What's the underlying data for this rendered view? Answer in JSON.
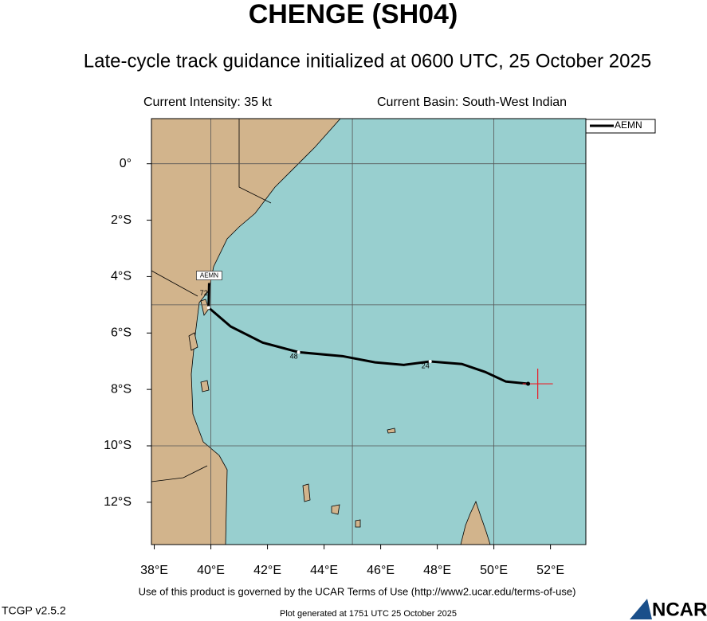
{
  "chart_data": {
    "type": "line",
    "title": "CHENGE (SH04)",
    "subtitle": "Late-cycle track guidance initialized at 0600 UTC, 25 October 2025",
    "intensity": "Current Intensity: 35 kt",
    "basin": "Current Basin: South-West Indian",
    "x": [
      51.21,
      50.42,
      49.69,
      48.87,
      47.75,
      46.82,
      45.8,
      44.65,
      43.1,
      41.83,
      40.7,
      39.92,
      39.94
    ],
    "series": [
      {
        "name": "AEMN",
        "color": "#000000",
        "values": [
          -7.8,
          -7.72,
          -7.38,
          -7.1,
          -7.01,
          -7.13,
          -7.04,
          -6.82,
          -6.68,
          -6.34,
          -5.77,
          -5.1,
          -4.23
        ],
        "value_labels": [
          null,
          null,
          null,
          null,
          "24",
          null,
          null,
          null,
          "48",
          null,
          null,
          "72",
          null
        ]
      }
    ],
    "current_position": {
      "x": 51.55,
      "y": -7.8,
      "color": "#e8202a"
    },
    "xlim": [
      37.9,
      53.25
    ],
    "ylim": [
      -13.5,
      1.6
    ],
    "xticks": [
      {
        "value": 38,
        "label": "38°E"
      },
      {
        "value": 40,
        "label": "40°E"
      },
      {
        "value": 42,
        "label": "42°E"
      },
      {
        "value": 44,
        "label": "44°E"
      },
      {
        "value": 46,
        "label": "46°E"
      },
      {
        "value": 48,
        "label": "48°E"
      },
      {
        "value": 50,
        "label": "50°E"
      },
      {
        "value": 52,
        "label": "52°E"
      }
    ],
    "yticks": [
      {
        "value": 0,
        "label": "0°"
      },
      {
        "value": -2,
        "label": "2°S"
      },
      {
        "value": -4,
        "label": "4°S"
      },
      {
        "value": -6,
        "label": "6°S"
      },
      {
        "value": -8,
        "label": "8°S"
      },
      {
        "value": -10,
        "label": "10°S"
      },
      {
        "value": -12,
        "label": "12°S"
      }
    ],
    "grid_x": [
      40,
      45,
      50
    ],
    "grid_y": [
      0,
      -5,
      -10
    ],
    "legend": "upper right",
    "footer": {
      "terms": "Use of this product is governed by the UCAR Terms of Use (http://www2.ucar.edu/terms-of-use)",
      "version": "TCGP v2.5.2",
      "generated": "Plot generated at 1751 UTC  25 October 2025",
      "logo": "NCAR"
    }
  }
}
